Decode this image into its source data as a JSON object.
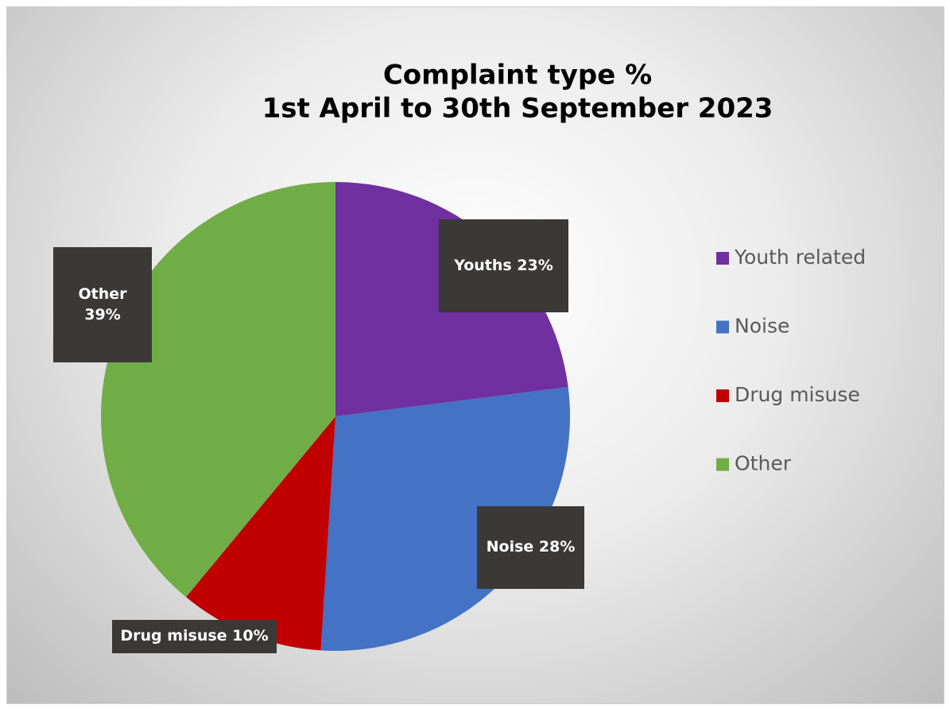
{
  "chart_data": {
    "type": "pie",
    "title": "Complaint type %",
    "subtitle": "1st April to 30th September 2023",
    "categories": [
      "Youth related",
      "Noise",
      "Drug misuse",
      "Other"
    ],
    "values": [
      23,
      28,
      10,
      39
    ],
    "value_labels": [
      "Youths 23%",
      "Noise 28%",
      "Drug misuse 10%",
      "Other 39%"
    ],
    "colors": [
      "#7030a0",
      "#4472c4",
      "#c00000",
      "#70ad47"
    ],
    "legend": "right"
  }
}
